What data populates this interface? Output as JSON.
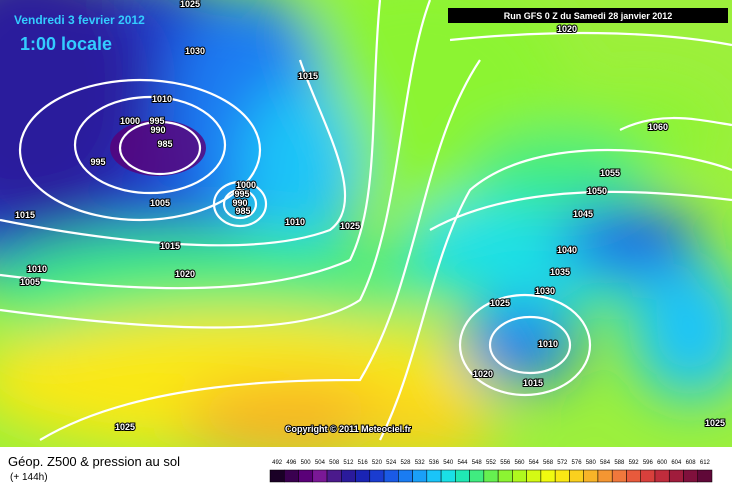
{
  "header": {
    "date": "Vendredi 3 fevrier 2012",
    "time": "1:00 locale",
    "run": "Run GFS 0 Z du Samedi 28 janvier 2012"
  },
  "copyright": "Copyright © 2011 Meteociel.fr",
  "isobar_labels": [
    "1025",
    "1030",
    "1015",
    "1010",
    "1000",
    "995",
    "990",
    "985",
    "995",
    "1005",
    "1000",
    "995",
    "990",
    "985",
    "1010",
    "1015",
    "1025",
    "1015",
    "1020",
    "1010",
    "1005",
    "1020",
    "1060",
    "1055",
    "1050",
    "1045",
    "1040",
    "1035",
    "1030",
    "1025",
    "1010",
    "1020",
    "1015",
    "1025",
    "1025"
  ],
  "footer": {
    "title": "Géop. Z500 & pression au sol",
    "subtitle": "(+ 144h)"
  },
  "colorbar": {
    "labels": [
      492,
      496,
      500,
      504,
      508,
      512,
      516,
      520,
      524,
      528,
      532,
      536,
      540,
      544,
      548,
      552,
      556,
      560,
      564,
      568,
      572,
      576,
      580,
      584,
      588,
      592,
      596,
      600,
      604,
      608,
      612
    ],
    "colors": [
      "#1a0026",
      "#3a0050",
      "#5a0078",
      "#7a1896",
      "#4b1a8c",
      "#2a1a9c",
      "#1a24b4",
      "#1a3cd0",
      "#1a5ae6",
      "#1a7cf2",
      "#1aa0f8",
      "#1ac4f8",
      "#1ae0e6",
      "#20e8b4",
      "#40ec80",
      "#66f050",
      "#8cf432",
      "#b0f81e",
      "#d4fa14",
      "#f0fa10",
      "#fae814",
      "#fad01e",
      "#f8b428",
      "#f49632",
      "#f0783c",
      "#e85a3c",
      "#d8403c",
      "#c02c3c",
      "#a01c3c",
      "#80103c",
      "#600838"
    ]
  }
}
